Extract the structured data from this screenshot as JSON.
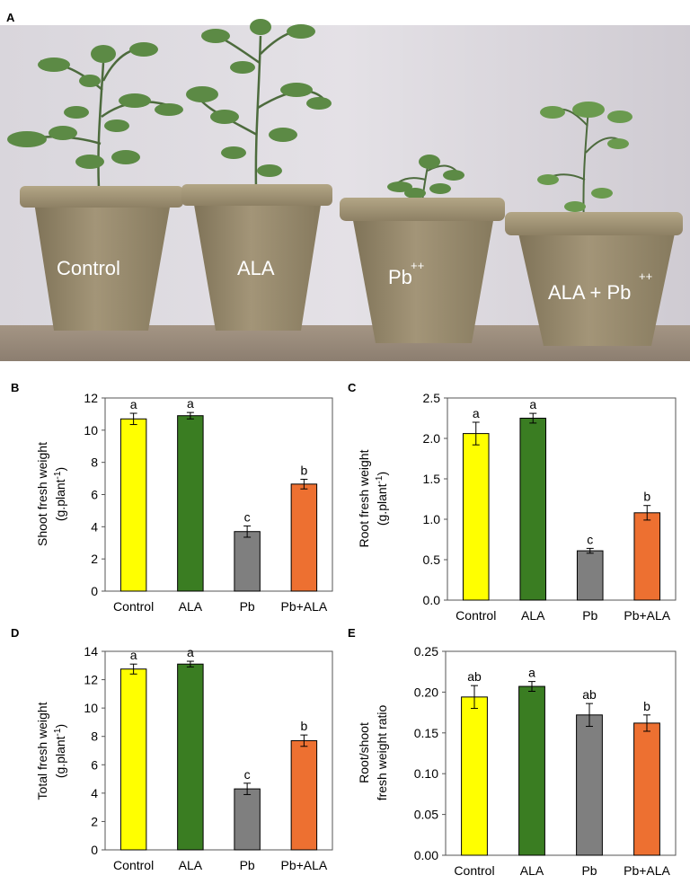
{
  "panel_labels": {
    "a": "A",
    "b": "B",
    "c": "C",
    "d": "D",
    "e": "E"
  },
  "photo": {
    "pot_labels": [
      "Control",
      "ALA",
      "Pb",
      "ALA + Pb"
    ],
    "superscript": "++"
  },
  "colors": {
    "Control": "#ffff00",
    "ALA": "#3a7d22",
    "Pb": "#7f7f7f",
    "Pb+ALA": "#ed7031"
  },
  "chart_data": [
    {
      "type": "bar",
      "panel": "B",
      "categories": [
        "Control",
        "ALA",
        "Pb",
        "Pb+ALA"
      ],
      "values": [
        10.7,
        10.9,
        3.7,
        6.65
      ],
      "errors": [
        0.35,
        0.2,
        0.35,
        0.3
      ],
      "letters": [
        "a",
        "a",
        "c",
        "b"
      ],
      "ylabel_line1": "Shoot fresh weight",
      "ylabel_line2": "(g.plant",
      "ylabel_sup": "-1",
      "ylabel_close": ")",
      "ylim": [
        0,
        12
      ],
      "yticks": [
        "0",
        "2",
        "4",
        "6",
        "8",
        "10",
        "12"
      ],
      "ytick_values": [
        0,
        2,
        4,
        6,
        8,
        10,
        12
      ]
    },
    {
      "type": "bar",
      "panel": "C",
      "categories": [
        "Control",
        "ALA",
        "Pb",
        "Pb+ALA"
      ],
      "values": [
        2.06,
        2.25,
        0.61,
        1.08
      ],
      "errors": [
        0.14,
        0.06,
        0.03,
        0.09
      ],
      "letters": [
        "a",
        "a",
        "c",
        "b"
      ],
      "ylabel_line1": "Root fresh weight",
      "ylabel_line2": "(g.plant",
      "ylabel_sup": "-1",
      "ylabel_close": ")",
      "ylim": [
        0,
        2.5
      ],
      "yticks": [
        "0.0",
        "0.5",
        "1.0",
        "1.5",
        "2.0",
        "2.5"
      ],
      "ytick_values": [
        0,
        0.5,
        1.0,
        1.5,
        2.0,
        2.5
      ]
    },
    {
      "type": "bar",
      "panel": "D",
      "categories": [
        "Control",
        "ALA",
        "Pb",
        "Pb+ALA"
      ],
      "values": [
        12.75,
        13.1,
        4.3,
        7.7
      ],
      "errors": [
        0.35,
        0.2,
        0.4,
        0.4
      ],
      "letters": [
        "a",
        "a",
        "c",
        "b"
      ],
      "ylabel_line1": "Total fresh weight",
      "ylabel_line2": "(g.plant",
      "ylabel_sup": "-1",
      "ylabel_close": ")",
      "ylim": [
        0,
        14
      ],
      "yticks": [
        "0",
        "2",
        "4",
        "6",
        "8",
        "10",
        "12",
        "14"
      ],
      "ytick_values": [
        0,
        2,
        4,
        6,
        8,
        10,
        12,
        14
      ]
    },
    {
      "type": "bar",
      "panel": "E",
      "categories": [
        "Control",
        "ALA",
        "Pb",
        "Pb+ALA"
      ],
      "values": [
        0.194,
        0.207,
        0.172,
        0.162
      ],
      "errors": [
        0.014,
        0.006,
        0.014,
        0.01
      ],
      "letters": [
        "ab",
        "a",
        "ab",
        "b"
      ],
      "ylabel_line1": "Root/shoot",
      "ylabel_line2": "fresh weight ratio",
      "ylabel_sup": "",
      "ylabel_close": "",
      "ylim": [
        0,
        0.25
      ],
      "yticks": [
        "0.00",
        "0.05",
        "0.10",
        "0.15",
        "0.20",
        "0.25"
      ],
      "ytick_values": [
        0,
        0.05,
        0.1,
        0.15,
        0.2,
        0.25
      ]
    }
  ]
}
